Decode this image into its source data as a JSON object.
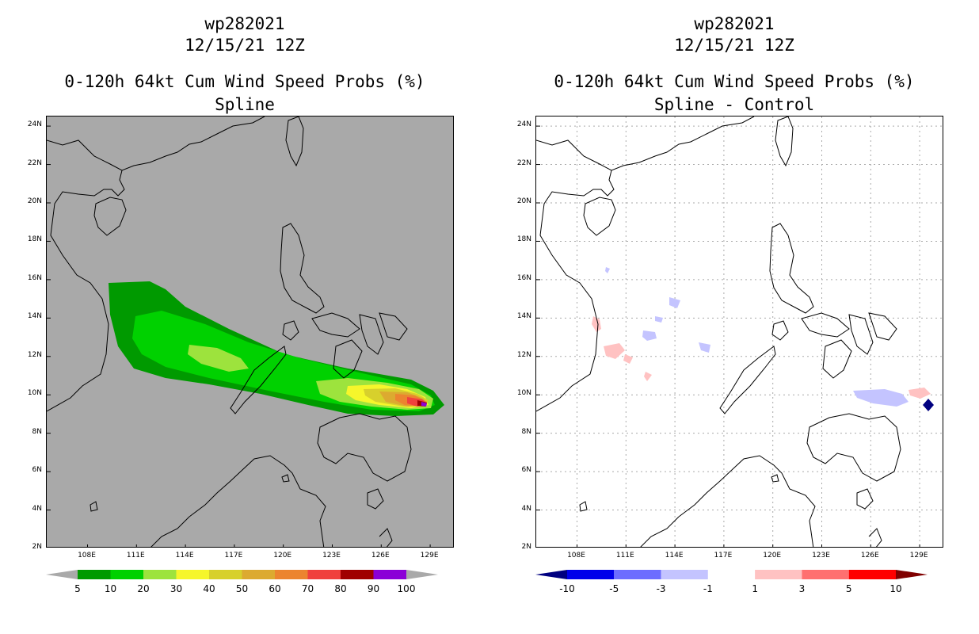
{
  "left_panel": {
    "title_lines": [
      "wp282021",
      "12/15/21 12Z",
      "0-120h 64kt Cum Wind Speed Probs (%)",
      "Spline"
    ],
    "background_color": "#a9a9a9",
    "colorbar": {
      "labels": [
        "5",
        "10",
        "20",
        "30",
        "40",
        "50",
        "60",
        "70",
        "80",
        "90",
        "100"
      ],
      "colors": [
        "#009a00",
        "#00d100",
        "#9de33d",
        "#f6f62b",
        "#d7d02c",
        "#dcaa30",
        "#ec842f",
        "#f0403d",
        "#a00000",
        "#8b00d7"
      ],
      "end_color": "#a9a9a9"
    }
  },
  "right_panel": {
    "title_lines": [
      "wp282021",
      "12/15/21 12Z",
      "0-120h 64kt Cum Wind Speed Probs (%)",
      "Spline - Control"
    ],
    "background_color": "#ffffff",
    "colorbar": {
      "labels": [
        "-10",
        "-5",
        "-3",
        "-1",
        "1",
        "3",
        "5",
        "10"
      ],
      "colors": [
        "#0000ea",
        "#6d6dff",
        "#c4c4ff",
        "#ffffff",
        "#ffc2c2",
        "#ff7070",
        "#ff0000"
      ],
      "end_low_color": "#000080",
      "end_high_color": "#800000"
    }
  },
  "map": {
    "lat_labels": [
      "2N",
      "4N",
      "6N",
      "8N",
      "10N",
      "12N",
      "14N",
      "16N",
      "18N",
      "20N",
      "22N",
      "24N"
    ],
    "lon_labels": [
      "108E",
      "111E",
      "114E",
      "117E",
      "120E",
      "123E",
      "126E",
      "129E"
    ],
    "lat_values": [
      2,
      4,
      6,
      8,
      10,
      12,
      14,
      16,
      18,
      20,
      22,
      24
    ],
    "lon_values": [
      108,
      111,
      114,
      117,
      120,
      123,
      126,
      129
    ],
    "lon_range": [
      105.5,
      130.5
    ],
    "lat_range": [
      2,
      24.5
    ],
    "grid_on_right_panel": true
  }
}
